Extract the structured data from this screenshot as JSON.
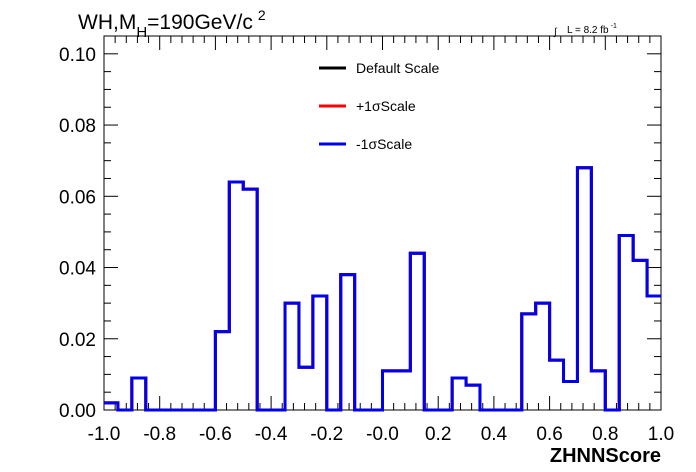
{
  "chart_data": {
    "type": "line",
    "style": "step-histogram",
    "title": {
      "main": "WH,M",
      "subscript": "H",
      "rest": "=190GeV/c",
      "superscript": "2"
    },
    "annotation": {
      "integral_symbol": "∫",
      "text": "L = 8.2 fb",
      "superscript": "-1"
    },
    "xlabel": "ZHNNScore",
    "ylabel": "",
    "xlim": [
      -1.0,
      1.0
    ],
    "ylim": [
      0.0,
      0.105
    ],
    "x_ticks": [
      "-1.0",
      "-0.8",
      "-0.6",
      "-0.4",
      "-0.2",
      "-0.0",
      "0.2",
      "0.4",
      "0.6",
      "0.8",
      "1.0"
    ],
    "y_ticks": [
      "0.00",
      "0.02",
      "0.04",
      "0.06",
      "0.08",
      "0.10"
    ],
    "grid": false,
    "legend_position": "top-center",
    "bin_edges": [
      -1.0,
      -0.95,
      -0.9,
      -0.85,
      -0.8,
      -0.75,
      -0.7,
      -0.65,
      -0.6,
      -0.55,
      -0.5,
      -0.45,
      -0.4,
      -0.35,
      -0.3,
      -0.25,
      -0.2,
      -0.15,
      -0.1,
      -0.05,
      0.0,
      0.05,
      0.1,
      0.15,
      0.2,
      0.25,
      0.3,
      0.35,
      0.4,
      0.45,
      0.5,
      0.55,
      0.6,
      0.65,
      0.7,
      0.75,
      0.8,
      0.85,
      0.9,
      0.95,
      1.0
    ],
    "series": [
      {
        "name": "Default Scale",
        "color": "#000000",
        "values": [
          0.002,
          0.0,
          0.009,
          0.0,
          0.0,
          0.0,
          0.0,
          0.0,
          0.022,
          0.064,
          0.062,
          0.0,
          0.0,
          0.03,
          0.012,
          0.032,
          0.0,
          0.038,
          0.0,
          0.0,
          0.011,
          0.011,
          0.044,
          0.0,
          0.0,
          0.009,
          0.007,
          0.0,
          0.0,
          0.0,
          0.027,
          0.03,
          0.014,
          0.008,
          0.068,
          0.011,
          0.0,
          0.049,
          0.042,
          0.032
        ]
      },
      {
        "name": "+1σScale",
        "color": "#ff0000",
        "values": [
          0.002,
          0.0,
          0.009,
          0.0,
          0.0,
          0.0,
          0.0,
          0.0,
          0.022,
          0.064,
          0.062,
          0.0,
          0.0,
          0.03,
          0.012,
          0.032,
          0.0,
          0.038,
          0.0,
          0.0,
          0.011,
          0.011,
          0.044,
          0.0,
          0.0,
          0.009,
          0.007,
          0.0,
          0.0,
          0.0,
          0.027,
          0.03,
          0.014,
          0.008,
          0.068,
          0.011,
          0.0,
          0.049,
          0.042,
          0.032
        ]
      },
      {
        "name": "-1σScale",
        "color": "#0000ee",
        "values": [
          0.002,
          0.0,
          0.009,
          0.0,
          0.0,
          0.0,
          0.0,
          0.0,
          0.022,
          0.064,
          0.062,
          0.0,
          0.0,
          0.03,
          0.012,
          0.032,
          0.0,
          0.038,
          0.0,
          0.0,
          0.011,
          0.011,
          0.044,
          0.0,
          0.0,
          0.009,
          0.007,
          0.0,
          0.0,
          0.0,
          0.027,
          0.03,
          0.014,
          0.008,
          0.068,
          0.011,
          0.0,
          0.049,
          0.042,
          0.032
        ]
      }
    ]
  }
}
